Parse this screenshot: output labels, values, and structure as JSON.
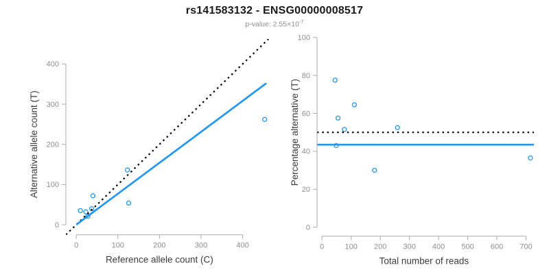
{
  "header": {
    "title": "rs141583132 - ENSG00000008517",
    "subtitle_base": "p-value: 2.55×10",
    "subtitle_exponent": "-7"
  },
  "colors": {
    "point_blue": "#2196F3",
    "fit_line_blue": "#2196F3",
    "reference_line_black": "#000000",
    "axis_line": "#aaaaaa",
    "tick_label": "#8e8e8e",
    "axis_title": "#3c3c3c",
    "title": "#1a1a1a",
    "subtitle": "#8e8e8e"
  },
  "chart_data": [
    {
      "type": "scatter",
      "panel": "allele-counts",
      "xlabel": "Reference allele count (C)",
      "ylabel": "Alternative allele count (T)",
      "xlim": [
        -25,
        470
      ],
      "ylim": [
        -25,
        462
      ],
      "xticks": [
        0,
        100,
        200,
        300,
        400
      ],
      "yticks": [
        0,
        100,
        200,
        300,
        400
      ],
      "points": [
        [
          10,
          35
        ],
        [
          28,
          21
        ],
        [
          23,
          32
        ],
        [
          37,
          40
        ],
        [
          40,
          72
        ],
        [
          126,
          54
        ],
        [
          123,
          136
        ],
        [
          453,
          262
        ]
      ],
      "lines": [
        {
          "name": "identity-line",
          "style": "dashed",
          "color": "#000000",
          "x1": -25,
          "y1": -25,
          "x2": 462,
          "y2": 462
        },
        {
          "name": "fit-line",
          "style": "solid",
          "color": "#2196F3",
          "x1": 0,
          "y1": 0,
          "x2": 457,
          "y2": 352
        }
      ]
    },
    {
      "type": "scatter",
      "panel": "percentage-vs-reads",
      "xlabel": "Total number of reads",
      "ylabel": "Percentage alternative (T)",
      "xlim": [
        -17,
        727
      ],
      "ylim": [
        -4.7,
        100
      ],
      "xticks": [
        0,
        100,
        200,
        300,
        400,
        500,
        600,
        700
      ],
      "yticks": [
        0,
        20,
        40,
        60,
        80,
        100
      ],
      "points": [
        [
          45,
          77.5
        ],
        [
          49,
          43
        ],
        [
          55,
          57.5
        ],
        [
          77,
          51.5
        ],
        [
          111,
          64.5
        ],
        [
          180,
          30
        ],
        [
          259,
          52.5
        ],
        [
          715,
          36.5
        ]
      ],
      "lines": [
        {
          "name": "expected-percentage-line",
          "style": "dashed",
          "color": "#000000",
          "x1": -17,
          "y1": 50,
          "x2": 727,
          "y2": 50
        },
        {
          "name": "observed-percentage-line",
          "style": "solid",
          "color": "#2196F3",
          "x1": -17,
          "y1": 43.5,
          "x2": 727,
          "y2": 43.5
        }
      ]
    }
  ]
}
